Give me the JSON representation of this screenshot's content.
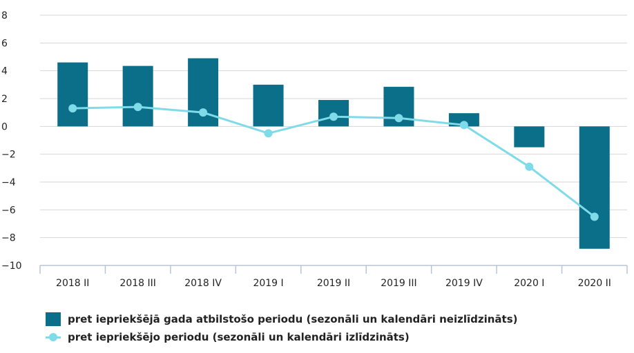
{
  "chart_data": {
    "type": "bar+line",
    "categories": [
      "2018 II",
      "2018 III",
      "2018 IV",
      "2019 I",
      "2019 II",
      "2019 III",
      "2019 IV",
      "2020 I",
      "2020 II"
    ],
    "series": [
      {
        "name": "pret iepriekšējā gada atbilstošo periodu (sezonāli un kalendāri neizlīdzināts)",
        "type": "bar",
        "color": "#0b6f8a",
        "values": [
          4.6,
          4.35,
          4.9,
          3.0,
          1.9,
          2.85,
          0.95,
          -1.5,
          -8.8
        ]
      },
      {
        "name": "pret iepriekšējo periodu (sezonāli un kalendāri izlīdzināts)",
        "type": "line",
        "color": "#7fdbe8",
        "values": [
          1.3,
          1.4,
          1.0,
          -0.5,
          0.7,
          0.6,
          0.1,
          -2.9,
          -6.5
        ]
      }
    ],
    "ylim": [
      -10,
      8
    ],
    "yticks": [
      8,
      6,
      4,
      2,
      0,
      -2,
      -4,
      -6,
      -8,
      -10
    ],
    "ytick_labels": [
      "8",
      "6",
      "4",
      "2",
      "0",
      "−2",
      "−4",
      "−6",
      "−8",
      "−10"
    ],
    "grid": true,
    "legend_position": "bottom-left"
  }
}
